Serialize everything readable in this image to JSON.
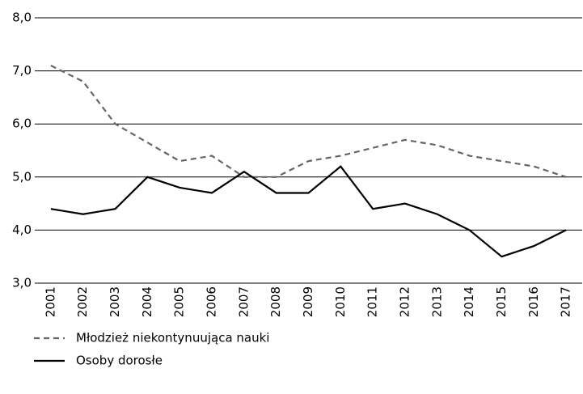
{
  "chart_data": {
    "type": "line",
    "categories": [
      "2001",
      "2002",
      "2003",
      "2004",
      "2005",
      "2006",
      "2007",
      "2008",
      "2009",
      "2010",
      "2011",
      "2012",
      "2013",
      "2014",
      "2015",
      "2016",
      "2017"
    ],
    "series": [
      {
        "name": "Młodzież niekontynuująca nauki",
        "color": "#666666",
        "dashed": true,
        "values": [
          7.1,
          6.8,
          6.0,
          5.65,
          5.3,
          5.4,
          5.0,
          5.0,
          5.3,
          5.4,
          5.55,
          5.7,
          5.6,
          5.4,
          5.3,
          5.2,
          5.0
        ]
      },
      {
        "name": "Osoby dorosłe",
        "color": "#000000",
        "dashed": false,
        "values": [
          4.4,
          4.3,
          4.4,
          5.0,
          4.8,
          4.7,
          5.1,
          4.7,
          4.7,
          5.2,
          4.4,
          4.5,
          4.3,
          4.0,
          3.5,
          3.7,
          4.0
        ]
      }
    ],
    "ylim": [
      3,
      8
    ],
    "yticks": [
      {
        "value": 3,
        "label": "3,0"
      },
      {
        "value": 4,
        "label": "4,0"
      },
      {
        "value": 5,
        "label": "5,0"
      },
      {
        "value": 6,
        "label": "6,0"
      },
      {
        "value": 7,
        "label": "7,0"
      },
      {
        "value": 8,
        "label": "8,0"
      }
    ],
    "grid": true
  }
}
